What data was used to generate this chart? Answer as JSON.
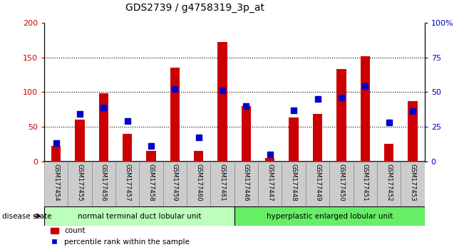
{
  "title": "GDS2739 / g4758319_3p_at",
  "samples": [
    "GSM177454",
    "GSM177455",
    "GSM177456",
    "GSM177457",
    "GSM177458",
    "GSM177459",
    "GSM177460",
    "GSM177461",
    "GSM177446",
    "GSM177447",
    "GSM177448",
    "GSM177449",
    "GSM177450",
    "GSM177451",
    "GSM177452",
    "GSM177453"
  ],
  "counts": [
    22,
    60,
    98,
    40,
    15,
    135,
    15,
    172,
    80,
    5,
    63,
    68,
    133,
    152,
    25,
    87
  ],
  "percentiles": [
    13,
    34,
    39,
    29,
    11,
    52,
    17,
    51,
    40,
    5,
    37,
    45,
    46,
    54,
    28,
    36
  ],
  "group1_label": "normal terminal duct lobular unit",
  "group2_label": "hyperplastic enlarged lobular unit",
  "group1_count": 8,
  "group2_count": 8,
  "disease_state_label": "disease state",
  "ylim_left": [
    0,
    200
  ],
  "ylim_right": [
    0,
    100
  ],
  "left_ticks": [
    0,
    50,
    100,
    150,
    200
  ],
  "right_ticks": [
    0,
    25,
    50,
    75,
    100
  ],
  "right_tick_labels": [
    "0",
    "25",
    "50",
    "75",
    "100%"
  ],
  "bar_color": "#cc0000",
  "marker_color": "#0000cc",
  "group1_bg": "#bbffbb",
  "group2_bg": "#66ee66",
  "tick_bg": "#cccccc",
  "legend_count_label": "count",
  "legend_pct_label": "percentile rank within the sample",
  "bar_width": 0.4,
  "marker_size": 6
}
